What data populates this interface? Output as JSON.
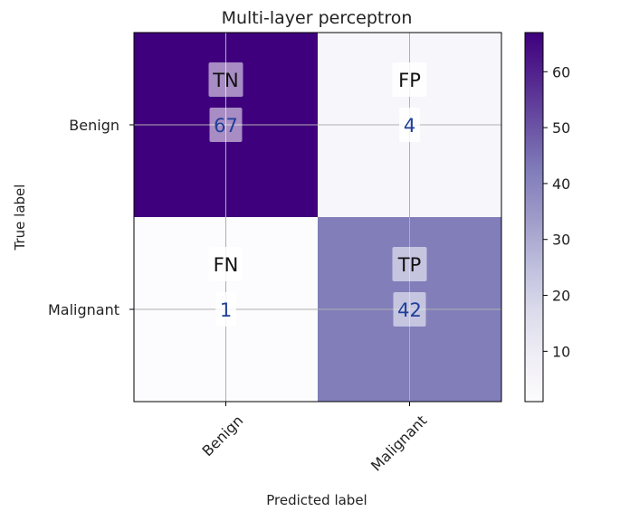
{
  "chart_data": {
    "type": "heatmap",
    "title": "Multi-layer perceptron",
    "xlabel": "Predicted label",
    "ylabel": "True label",
    "x_categories": [
      "Benign",
      "Malignant"
    ],
    "y_categories": [
      "Benign",
      "Malignant"
    ],
    "cells": [
      {
        "row": 0,
        "col": 0,
        "tag": "TN",
        "value": 67
      },
      {
        "row": 0,
        "col": 1,
        "tag": "FP",
        "value": 4
      },
      {
        "row": 1,
        "col": 0,
        "tag": "FN",
        "value": 1
      },
      {
        "row": 1,
        "col": 1,
        "tag": "TP",
        "value": 42
      }
    ],
    "colorbar": {
      "colormap": "Purples",
      "range": [
        1,
        67
      ],
      "ticks": [
        "10",
        "20",
        "30",
        "40",
        "50",
        "60"
      ]
    },
    "grid": true,
    "colors": {
      "dark": "#3f007d",
      "light": "#fcfbfd",
      "mid": "#7d7bba",
      "value_text": "#1f3f99",
      "tag_text": "#111111"
    }
  }
}
